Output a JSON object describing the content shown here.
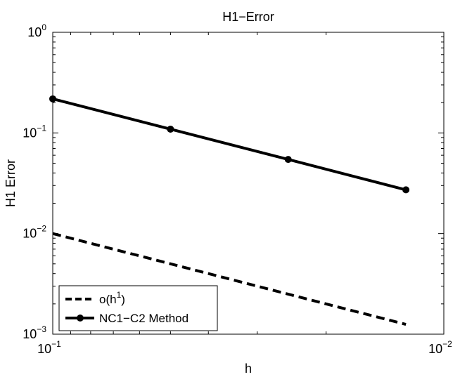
{
  "chart_data": {
    "type": "line",
    "title": "H1−Error",
    "xlabel": "h",
    "ylabel": "H1 Error",
    "x_scale": "log",
    "y_scale": "log",
    "x_reversed": true,
    "xlim": [
      0.1,
      0.01
    ],
    "ylim": [
      0.001,
      1
    ],
    "grid": false,
    "legend_position": "bottom-left",
    "x_ticks": [
      {
        "value": 0.1,
        "base": "10",
        "exp": "−1"
      },
      {
        "value": 0.01,
        "base": "10",
        "exp": "−2"
      }
    ],
    "y_ticks": [
      {
        "value": 1,
        "base": "10",
        "exp": "0"
      },
      {
        "value": 0.1,
        "base": "10",
        "exp": "−1"
      },
      {
        "value": 0.01,
        "base": "10",
        "exp": "−2"
      },
      {
        "value": 0.001,
        "base": "10",
        "exp": "−3"
      }
    ],
    "series": [
      {
        "name": "o(h",
        "name_sup": "1",
        "name_suffix": ")",
        "style": "dashed",
        "marker": "none",
        "color": "#000000",
        "x": [
          0.1,
          0.0125
        ],
        "y": [
          0.01,
          0.00125
        ]
      },
      {
        "name": "NC1−C2 Method",
        "style": "solid",
        "marker": "circle",
        "color": "#000000",
        "x": [
          0.1,
          0.05,
          0.025,
          0.0125
        ],
        "y": [
          0.218,
          0.109,
          0.0545,
          0.0272
        ]
      }
    ]
  }
}
